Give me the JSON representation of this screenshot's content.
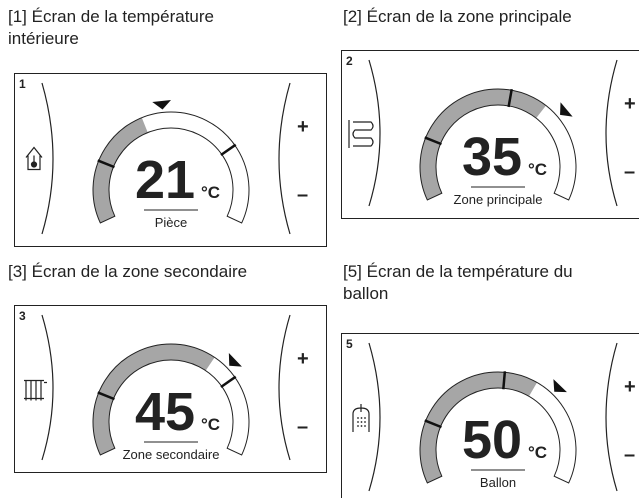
{
  "panels": [
    {
      "caption": [
        "[1] Écran de la température",
        "intérieure"
      ],
      "number": "1",
      "value": "21",
      "unit": "°C",
      "label": "Pièce",
      "plus": "+",
      "minus": "–"
    },
    {
      "caption": [
        "[2] Écran de la zone principale"
      ],
      "number": "2",
      "value": "35",
      "unit": "°C",
      "label": "Zone principale",
      "plus": "+",
      "minus": "–"
    },
    {
      "caption": [
        "[3] Écran de la zone secondaire"
      ],
      "number": "3",
      "value": "45",
      "unit": "°C",
      "label": "Zone secondaire",
      "plus": "+",
      "minus": "–"
    },
    {
      "caption": [
        "[5] Écran de la température du",
        "ballon"
      ],
      "number": "5",
      "value": "50",
      "unit": "°C",
      "label": "Ballon",
      "plus": "+",
      "minus": "–"
    }
  ]
}
